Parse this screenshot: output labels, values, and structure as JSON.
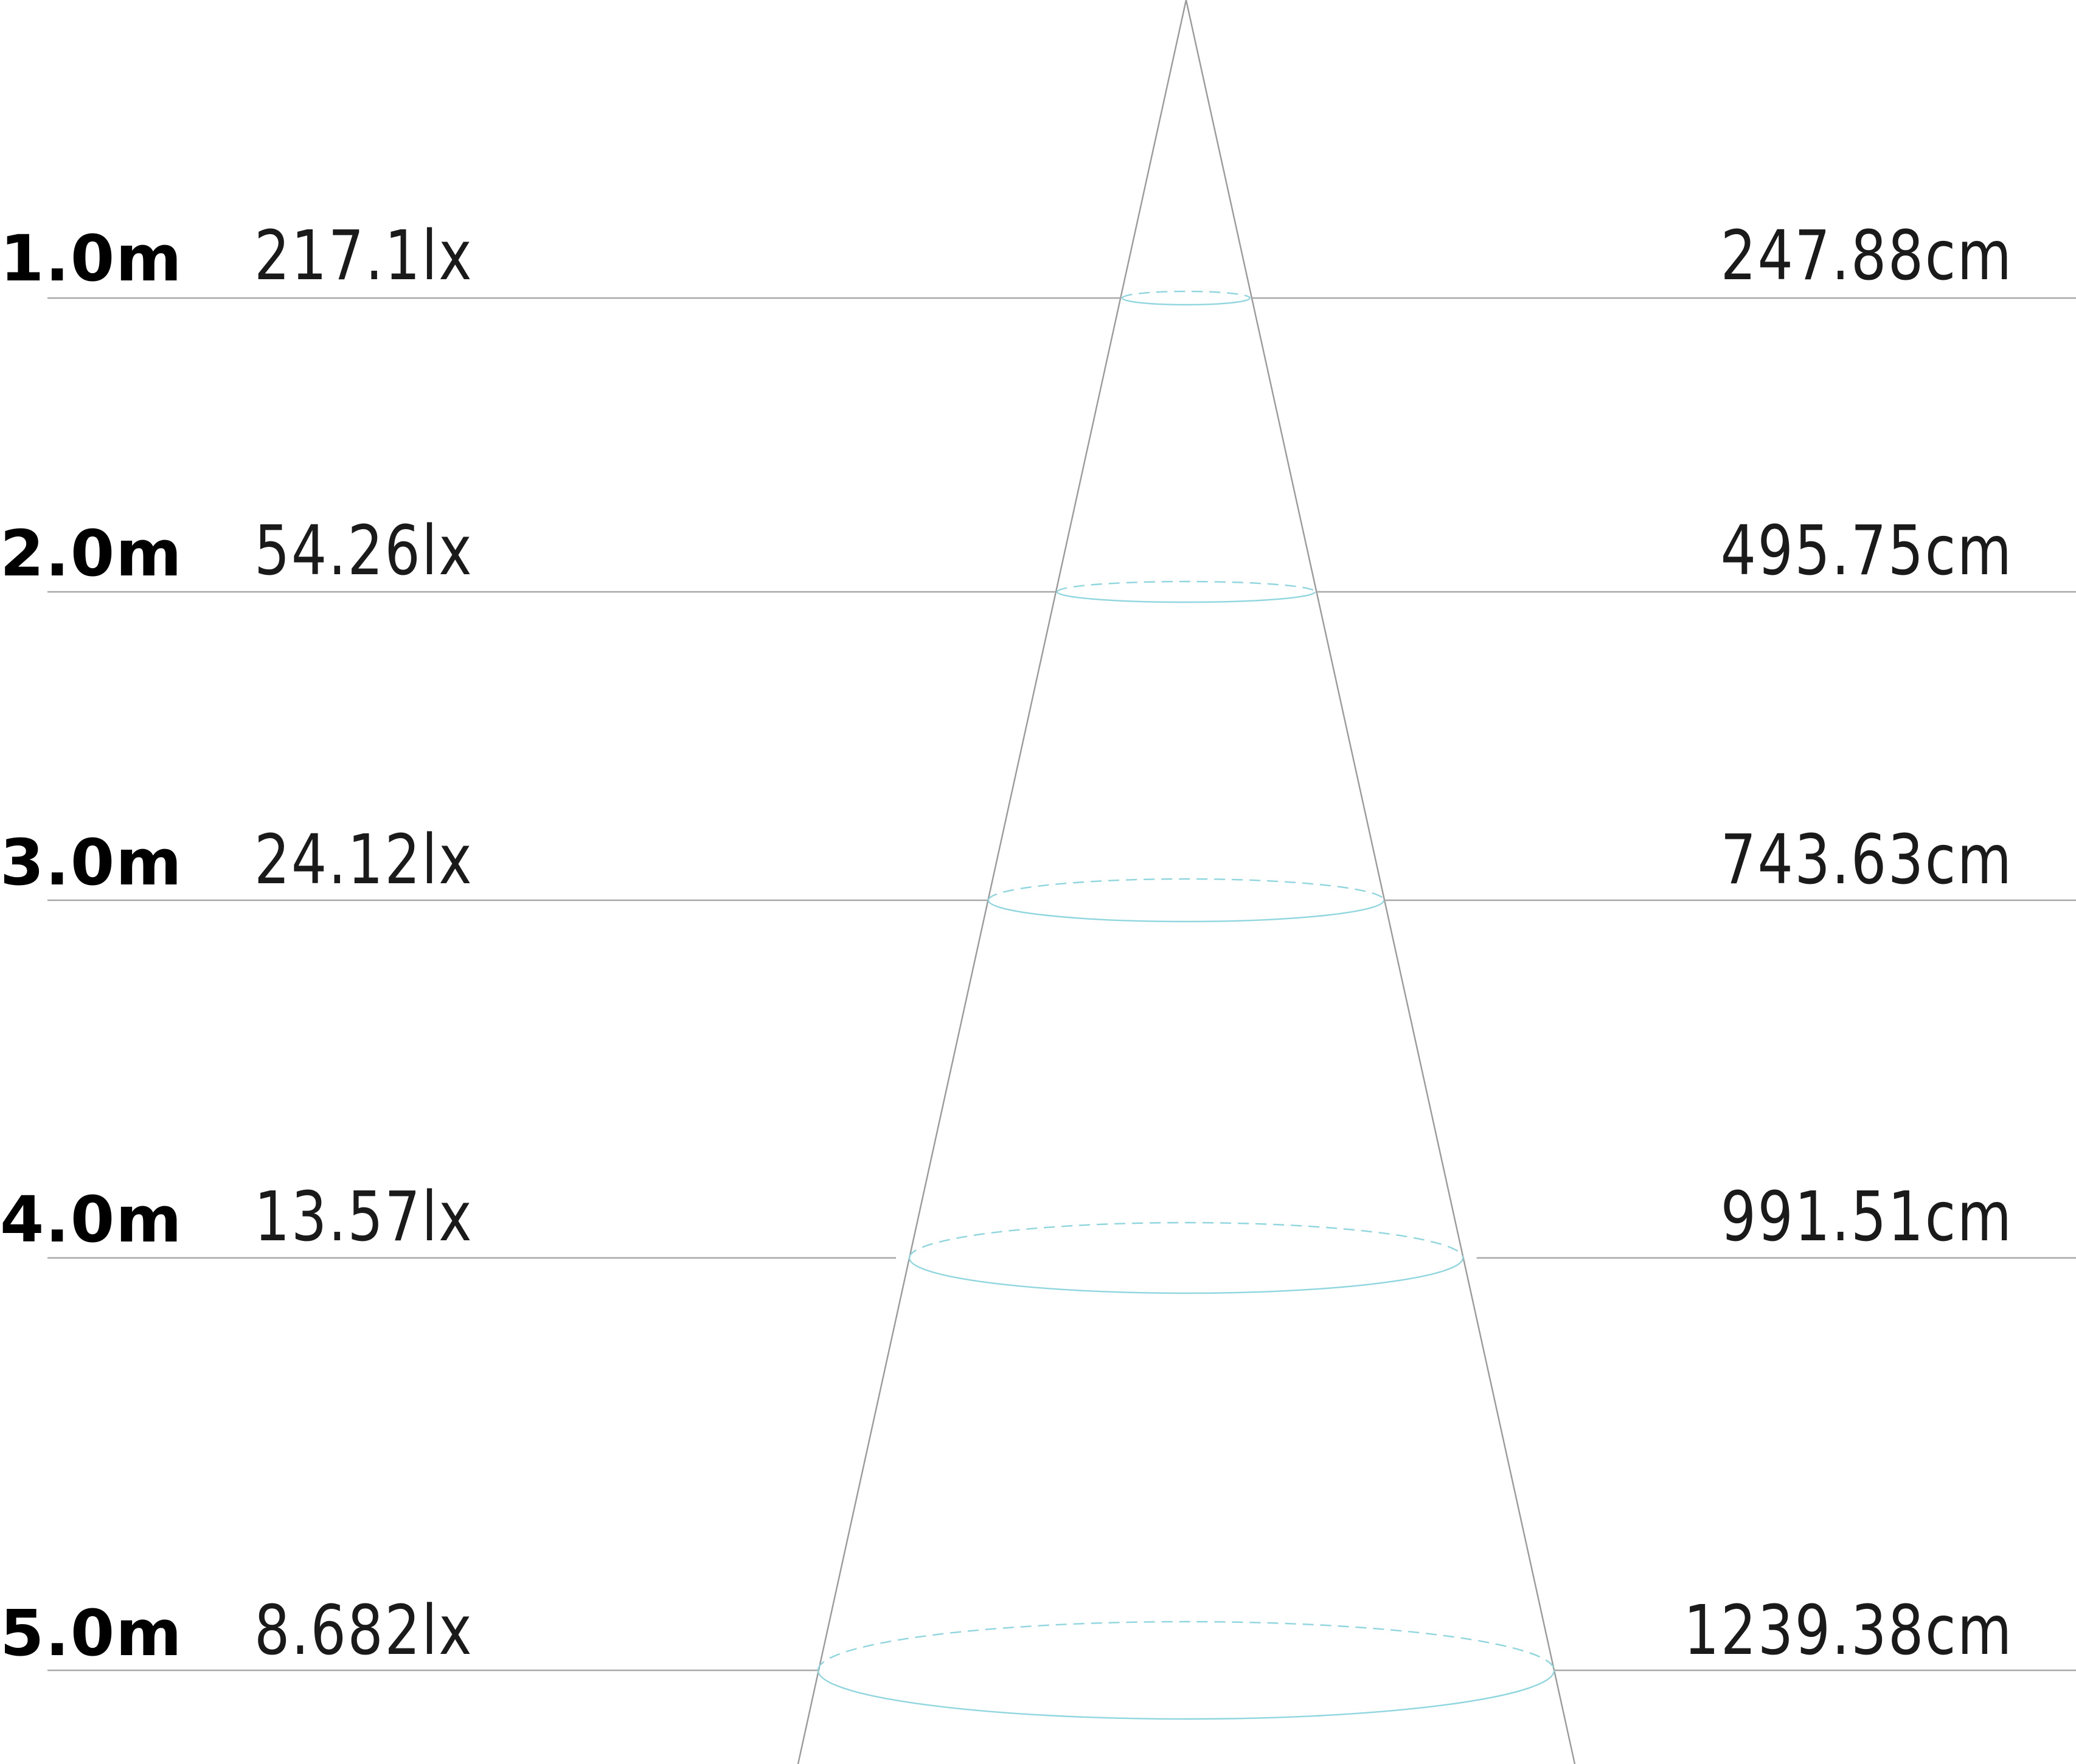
{
  "colors": {
    "guide_line": "#a8a8a8",
    "cone_edge": "#9a9a9a",
    "beam_ellipse": "#8fd6de",
    "text": "#111111"
  },
  "levels": [
    {
      "distance": "1.0m",
      "illuminance": "217.1lx",
      "diameter": "247.88cm",
      "distance_m": 1.0,
      "illuminance_lx": 217.1,
      "diameter_cm": 247.88
    },
    {
      "distance": "2.0m",
      "illuminance": "54.26lx",
      "diameter": "495.75cm",
      "distance_m": 2.0,
      "illuminance_lx": 54.26,
      "diameter_cm": 495.75
    },
    {
      "distance": "3.0m",
      "illuminance": "24.12lx",
      "diameter": "743.63cm",
      "distance_m": 3.0,
      "illuminance_lx": 24.12,
      "diameter_cm": 743.63
    },
    {
      "distance": "4.0m",
      "illuminance": "13.57lx",
      "diameter": "991.51cm",
      "distance_m": 4.0,
      "illuminance_lx": 13.57,
      "diameter_cm": 991.51
    },
    {
      "distance": "5.0m",
      "illuminance": "8.682lx",
      "diameter": "1239.38cm",
      "distance_m": 5.0,
      "illuminance_lx": 8.682,
      "diameter_cm": 1239.38
    }
  ]
}
